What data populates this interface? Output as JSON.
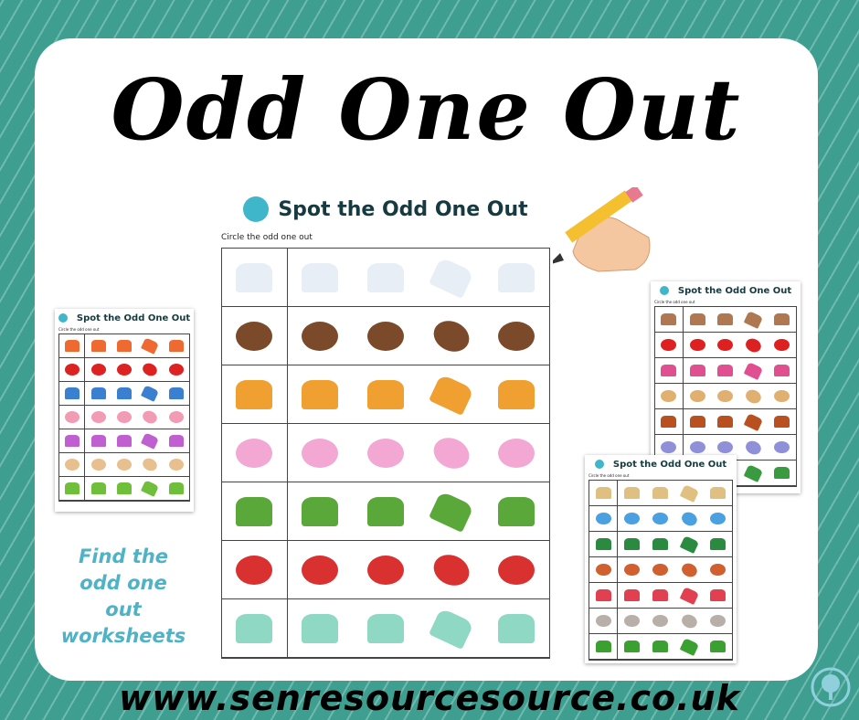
{
  "title": "Odd One Out",
  "worksheet_title": "Spot the Odd One Out",
  "instruction": "Circle the odd one out",
  "tagline": [
    "Find the",
    "odd one",
    "out",
    "worksheets"
  ],
  "url": "www.senresourcesource.co.uk",
  "colors": {
    "background": "#3e9e90",
    "accent": "#4fb3c7",
    "title": "#163a40"
  },
  "sheets": {
    "main": {
      "rows": [
        {
          "icon": "dice",
          "color": "#e8eef5"
        },
        {
          "icon": "girl",
          "color": "#7a4a2a"
        },
        {
          "icon": "rainbow",
          "color": "#f0a030"
        },
        {
          "icon": "unicorn",
          "color": "#f2a8d2"
        },
        {
          "icon": "leaf",
          "color": "#5aa83a"
        },
        {
          "icon": "cap",
          "color": "#d93030"
        },
        {
          "icon": "dinosaur",
          "color": "#8fd8c4"
        }
      ]
    },
    "left": {
      "rows": [
        {
          "icon": "beach-ball",
          "color": "#ee6a30"
        },
        {
          "icon": "car",
          "color": "#dd2222"
        },
        {
          "icon": "flowers",
          "color": "#3a7fd0"
        },
        {
          "icon": "donut",
          "color": "#f29bb5"
        },
        {
          "icon": "xylophone",
          "color": "#c060d0"
        },
        {
          "icon": "ice-cream",
          "color": "#e8c090"
        },
        {
          "icon": "caterpillar",
          "color": "#6fbf3a"
        }
      ]
    },
    "right_top": {
      "rows": [
        {
          "icon": "hand",
          "color": "#b07850"
        },
        {
          "icon": "apple",
          "color": "#dd2020"
        },
        {
          "icon": "stacking-toy",
          "color": "#e05090"
        },
        {
          "icon": "dog",
          "color": "#e0b070"
        },
        {
          "icon": "guitar",
          "color": "#b85020"
        },
        {
          "icon": "dragon",
          "color": "#9090d8"
        },
        {
          "icon": "palm-tree",
          "color": "#3a9a40"
        }
      ]
    },
    "right_bottom": {
      "rows": [
        {
          "icon": "pencil",
          "color": "#e0c080"
        },
        {
          "icon": "shoe",
          "color": "#4aa0e0"
        },
        {
          "icon": "train",
          "color": "#2a8a40"
        },
        {
          "icon": "hotdog",
          "color": "#d06030"
        },
        {
          "icon": "watermelon",
          "color": "#e04050"
        },
        {
          "icon": "mouse",
          "color": "#b8b0a8"
        },
        {
          "icon": "parrot",
          "color": "#3aa030"
        }
      ]
    }
  }
}
